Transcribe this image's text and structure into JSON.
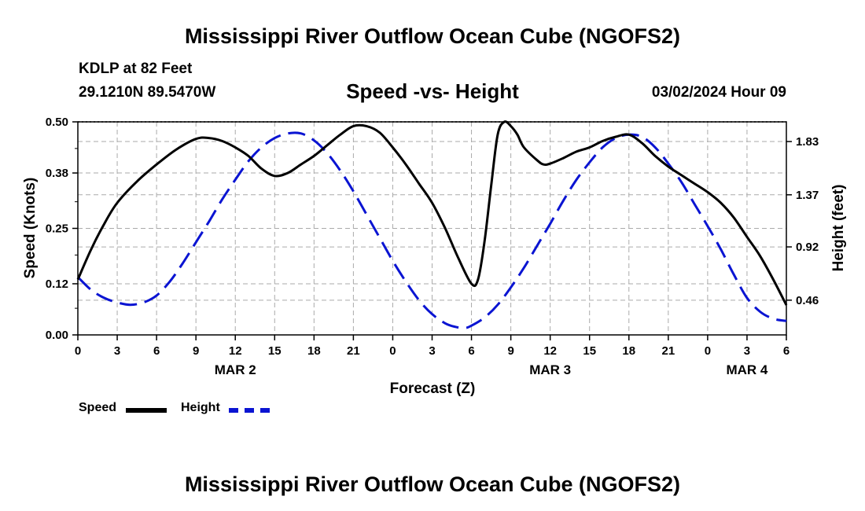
{
  "header": {
    "title_top": "Mississippi River Outflow Ocean Cube (NGOFS2)",
    "station": "KDLP at 82 Feet",
    "coords": "29.1210N  89.5470W",
    "datetime": "03/02/2024 Hour 09",
    "title_bottom": "Mississippi River Outflow Ocean Cube (NGOFS2)"
  },
  "legend": {
    "speed_label": "Speed",
    "height_label": "Height"
  },
  "colors": {
    "speed": "#000000",
    "height": "#0a14d2",
    "grid": "#aaaaaa"
  },
  "chart_data": {
    "type": "line",
    "title": "Speed -vs- Height",
    "xlabel": "Forecast (Z)",
    "ylabel": "Speed (Knots)",
    "y2label": "Height (feet)",
    "xlim": [
      0,
      54
    ],
    "ylim": [
      0,
      0.5
    ],
    "y2lim": [
      0.16,
      2.0
    ],
    "x_ticks": [
      0,
      3,
      6,
      9,
      12,
      15,
      18,
      21,
      24,
      27,
      30,
      33,
      36,
      39,
      42,
      45,
      48,
      51,
      54
    ],
    "x_tick_labels": [
      "0",
      "3",
      "6",
      "9",
      "12",
      "15",
      "18",
      "21",
      "0",
      "3",
      "6",
      "9",
      "12",
      "15",
      "18",
      "21",
      "0",
      "3",
      "6"
    ],
    "y_ticks": [
      0.0,
      0.12,
      0.25,
      0.38,
      0.5
    ],
    "y_tick_labels": [
      "0.00",
      "0.12",
      "0.25",
      "0.38",
      "0.50"
    ],
    "y2_ticks": [
      0.46,
      0.92,
      1.37,
      1.83
    ],
    "y2_tick_labels": [
      "0.46",
      "0.92",
      "1.37",
      "1.83"
    ],
    "date_labels": [
      {
        "x": 12,
        "text": "MAR 2"
      },
      {
        "x": 36,
        "text": "MAR 3"
      },
      {
        "x": 51,
        "text": "MAR 4"
      }
    ],
    "grid": true,
    "series": [
      {
        "name": "Speed",
        "axis": "left",
        "x": [
          0,
          1,
          2,
          3,
          4.5,
          6,
          7.5,
          9,
          10,
          11,
          12,
          13,
          14,
          15,
          16,
          17,
          18,
          19,
          20,
          21,
          22,
          23,
          24,
          25,
          26,
          27,
          28,
          29,
          30,
          30.5,
          31,
          31.5,
          32,
          32.5,
          33,
          33.5,
          34,
          35,
          35.5,
          36,
          37,
          38,
          39,
          40,
          41,
          42,
          43,
          44,
          45,
          46,
          47,
          48,
          49,
          50,
          51,
          52,
          53,
          54
        ],
        "values": [
          0.13,
          0.2,
          0.26,
          0.31,
          0.36,
          0.4,
          0.435,
          0.46,
          0.462,
          0.455,
          0.44,
          0.42,
          0.39,
          0.373,
          0.38,
          0.4,
          0.42,
          0.445,
          0.47,
          0.49,
          0.49,
          0.475,
          0.44,
          0.4,
          0.355,
          0.31,
          0.25,
          0.18,
          0.12,
          0.13,
          0.22,
          0.35,
          0.47,
          0.5,
          0.49,
          0.47,
          0.44,
          0.41,
          0.4,
          0.402,
          0.415,
          0.43,
          0.44,
          0.455,
          0.465,
          0.47,
          0.45,
          0.42,
          0.395,
          0.375,
          0.355,
          0.335,
          0.31,
          0.275,
          0.23,
          0.185,
          0.13,
          0.07
        ]
      },
      {
        "name": "Height",
        "axis": "right",
        "x": [
          0,
          1,
          2,
          3,
          4,
          5,
          6,
          7,
          8,
          9,
          10,
          11,
          12,
          13,
          14,
          15,
          16,
          17,
          18,
          19,
          20,
          21,
          22,
          23,
          24,
          25,
          26,
          27,
          28,
          28.75,
          29.5,
          30,
          31,
          32,
          33,
          34,
          35,
          36,
          37,
          38,
          39,
          40,
          41,
          42,
          43,
          44,
          45,
          46,
          47,
          48,
          49,
          50,
          51,
          52,
          53,
          54
        ],
        "values": [
          0.66,
          0.55,
          0.48,
          0.44,
          0.42,
          0.44,
          0.5,
          0.62,
          0.78,
          0.96,
          1.14,
          1.33,
          1.5,
          1.66,
          1.78,
          1.86,
          1.9,
          1.9,
          1.84,
          1.73,
          1.58,
          1.4,
          1.2,
          1.0,
          0.8,
          0.62,
          0.46,
          0.34,
          0.26,
          0.23,
          0.22,
          0.24,
          0.31,
          0.42,
          0.57,
          0.74,
          0.93,
          1.12,
          1.32,
          1.5,
          1.65,
          1.78,
          1.86,
          1.89,
          1.87,
          1.78,
          1.64,
          1.48,
          1.29,
          1.1,
          0.9,
          0.68,
          0.48,
          0.36,
          0.3,
          0.28
        ]
      }
    ]
  }
}
